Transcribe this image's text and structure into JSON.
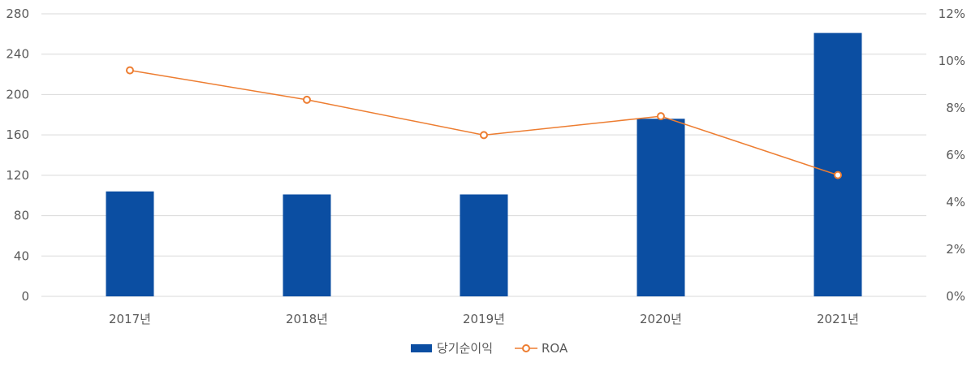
{
  "chart_data": {
    "type": "bar",
    "categories": [
      "2017년",
      "2018년",
      "2019년",
      "2020년",
      "2021년"
    ],
    "series": [
      {
        "name": "당기순이익",
        "type": "bar",
        "axis": "left",
        "color": "#0b4ea2",
        "values": [
          104,
          101,
          101,
          176,
          261
        ]
      },
      {
        "name": "ROA",
        "type": "line",
        "axis": "right",
        "color": "#ed7d31",
        "values": [
          9.6,
          8.35,
          6.85,
          7.65,
          5.15
        ]
      }
    ],
    "y_left": {
      "min": 0,
      "max": 280,
      "step": 40,
      "ticks": [
        "0",
        "40",
        "80",
        "120",
        "160",
        "200",
        "240",
        "280"
      ]
    },
    "y_right": {
      "min": 0,
      "max": 12,
      "step": 2,
      "ticks": [
        "0%",
        "2%",
        "4%",
        "6%",
        "8%",
        "10%",
        "12%"
      ]
    },
    "grid": true,
    "legend_position": "bottom-center",
    "title": "",
    "xlabel": "",
    "ylabel": ""
  }
}
